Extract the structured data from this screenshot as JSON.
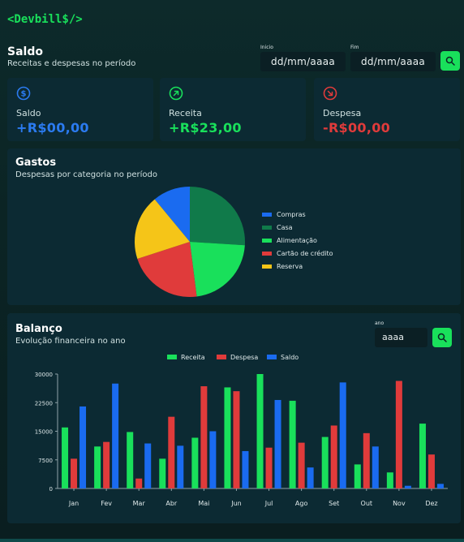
{
  "app": {
    "logo": "<Devbill$/>"
  },
  "summary": {
    "title": "Saldo",
    "subtitle": "Receitas e despesas no período",
    "start_label": "Inicio",
    "start_value": "dd/mm/aaaa",
    "end_label": "Fim",
    "end_value": "dd/mm/aaaa"
  },
  "cards": [
    {
      "label": "Saldo",
      "value": "+R$00,00",
      "icon": "dollar-circle-icon",
      "color": "#2b7bf0"
    },
    {
      "label": "Receita",
      "value": "+R$23,00",
      "icon": "arrow-up-right-circle-icon",
      "color": "#19e05b"
    },
    {
      "label": "Despesa",
      "value": "-R$00,00",
      "icon": "arrow-down-right-circle-icon",
      "color": "#e03b3b"
    }
  ],
  "expenses": {
    "title": "Gastos",
    "subtitle": "Despesas por categoria no período",
    "legend": [
      {
        "label": "Compras",
        "color": "#1a6bf0"
      },
      {
        "label": "Casa",
        "color": "#107a4a"
      },
      {
        "label": "Alimentação",
        "color": "#19e05b"
      },
      {
        "label": "Cartão de crédito",
        "color": "#e03b3b"
      },
      {
        "label": "Reserva",
        "color": "#f5c518"
      }
    ]
  },
  "balance": {
    "title": "Balanço",
    "subtitle": "Evolução financeira no ano",
    "year_label": "ano",
    "year_value": "aaaa"
  },
  "colors": {
    "accent": "#19e05b",
    "income": "#19e05b",
    "expense": "#e03b3b",
    "balance": "#1a6bf0"
  },
  "chart_data": [
    {
      "type": "pie",
      "categories": [
        "Compras",
        "Casa",
        "Alimentação",
        "Cartão de crédito",
        "Reserva"
      ],
      "values": [
        11,
        26,
        22,
        22,
        19
      ],
      "colors": [
        "#1a6bf0",
        "#107a4a",
        "#19e05b",
        "#e03b3b",
        "#f5c518"
      ],
      "legend": "right"
    },
    {
      "type": "bar",
      "categories": [
        "Jan",
        "Fev",
        "Mar",
        "Abr",
        "Mai",
        "Jun",
        "Jul",
        "Ago",
        "Set",
        "Out",
        "Nov",
        "Dez"
      ],
      "series": [
        {
          "name": "Receita",
          "color": "#19e05b",
          "values": [
            16000,
            11000,
            14800,
            7800,
            13300,
            26500,
            30000,
            23000,
            13500,
            6300,
            4200,
            17000
          ]
        },
        {
          "name": "Despesa",
          "color": "#e03b3b",
          "values": [
            7800,
            12200,
            2600,
            18800,
            26800,
            25500,
            10700,
            12000,
            16500,
            14500,
            28200,
            8900
          ]
        },
        {
          "name": "Saldo",
          "color": "#1a6bf0",
          "values": [
            21500,
            27500,
            11800,
            11200,
            15000,
            9800,
            23200,
            5500,
            27800,
            11000,
            700,
            1200
          ]
        }
      ],
      "yticks": [
        0,
        7500,
        15000,
        22500,
        30000
      ],
      "ylim": [
        0,
        30000
      ],
      "legend": "top"
    }
  ]
}
